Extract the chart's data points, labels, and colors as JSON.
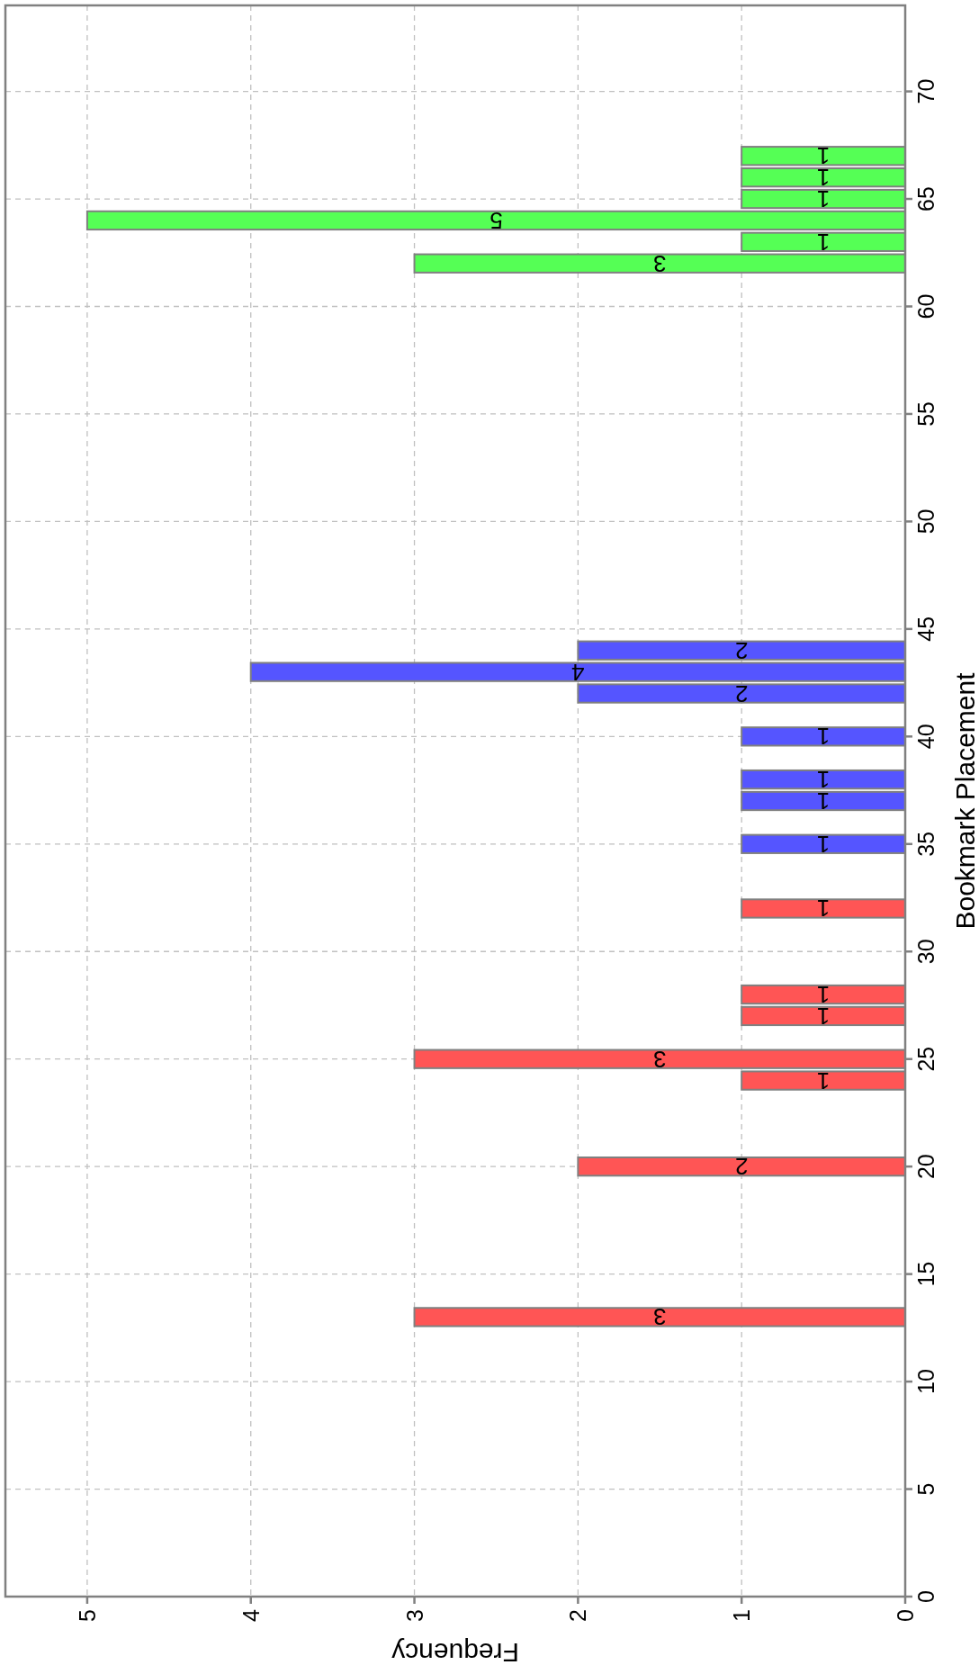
{
  "chart_data": {
    "type": "bar",
    "orientation": "horizontal",
    "xlabel": "Frequency",
    "ylabel": "Bookmark Placement",
    "x": [
      13,
      20,
      24,
      25,
      27,
      28,
      32,
      35,
      37,
      38,
      40,
      42,
      43,
      44,
      62,
      63,
      64,
      65,
      66,
      67
    ],
    "values": [
      3,
      2,
      1,
      3,
      1,
      1,
      1,
      1,
      1,
      1,
      1,
      2,
      4,
      2,
      3,
      1,
      5,
      1,
      1,
      1
    ],
    "colors": [
      "#ff5555",
      "#ff5555",
      "#ff5555",
      "#ff5555",
      "#ff5555",
      "#ff5555",
      "#ff5555",
      "#5555ff",
      "#5555ff",
      "#5555ff",
      "#5555ff",
      "#5555ff",
      "#5555ff",
      "#5555ff",
      "#55ff55",
      "#55ff55",
      "#55ff55",
      "#55ff55",
      "#55ff55",
      "#55ff55"
    ],
    "xlim": [
      5.5,
      0
    ],
    "ylim": [
      0,
      74
    ],
    "xticks": [
      0,
      1,
      2,
      3,
      4,
      5
    ],
    "yticks": [
      0,
      5,
      10,
      15,
      20,
      25,
      30,
      35,
      40,
      45,
      50,
      55,
      60,
      65,
      70
    ],
    "grid": true,
    "data_labels": true
  }
}
